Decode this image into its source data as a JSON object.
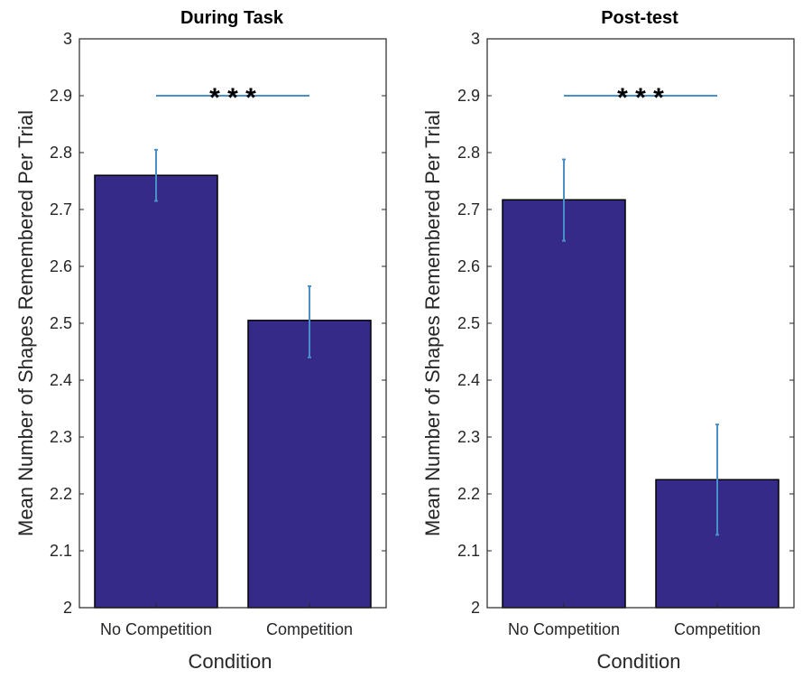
{
  "chart_data": [
    {
      "type": "bar",
      "title": "During Task",
      "xlabel": "Condition",
      "ylabel": "Mean Number of Shapes Remembered Per Trial",
      "categories": [
        "No Competition",
        "Competition"
      ],
      "values": [
        2.76,
        2.505
      ],
      "error": [
        [
          2.715,
          2.805
        ],
        [
          2.44,
          2.565
        ]
      ],
      "ylim": [
        2,
        3
      ],
      "yticks": [
        "2",
        "2.1",
        "2.2",
        "2.3",
        "2.4",
        "2.5",
        "2.6",
        "2.7",
        "2.8",
        "2.9",
        "3"
      ],
      "significance": {
        "label": "* * *",
        "y": 2.9
      },
      "bar_color": "#352a87",
      "error_color": "#4a90c8"
    },
    {
      "type": "bar",
      "title": "Post-test",
      "xlabel": "Condition",
      "ylabel": "Mean Number of Shapes Remembered Per Trial",
      "categories": [
        "No Competition",
        "Competition"
      ],
      "values": [
        2.717,
        2.225
      ],
      "error": [
        [
          2.645,
          2.788
        ],
        [
          2.128,
          2.322
        ]
      ],
      "ylim": [
        2,
        3
      ],
      "yticks": [
        "2",
        "2.1",
        "2.2",
        "2.3",
        "2.4",
        "2.5",
        "2.6",
        "2.7",
        "2.8",
        "2.9",
        "3"
      ],
      "significance": {
        "label": "* * *",
        "y": 2.9
      },
      "bar_color": "#352a87",
      "error_color": "#4a90c8"
    }
  ]
}
